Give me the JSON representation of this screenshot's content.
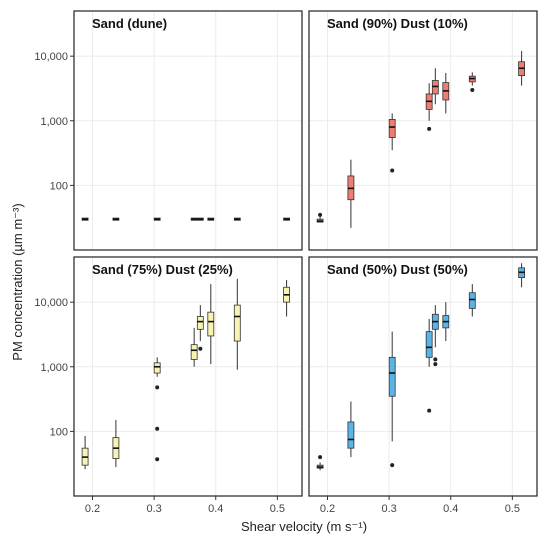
{
  "chart_data": {
    "type": "boxplot",
    "xlabel": "Shear velocity (m s⁻¹)",
    "ylabel": "PM concentration (µm m⁻³)",
    "xlim": [
      0.17,
      0.54
    ],
    "ylim": [
      10,
      50000
    ],
    "yscale": "log",
    "xticks": [
      0.2,
      0.3,
      0.4,
      0.5
    ],
    "xtick_labels": [
      "0.2",
      "0.3",
      "0.4",
      "0.5"
    ],
    "yticks": [
      100,
      1000,
      10000
    ],
    "ytick_labels": [
      "100",
      "1,000",
      "10,000"
    ],
    "grid": true,
    "legend": "none",
    "panels": [
      {
        "title": "Sand (dune)",
        "color": "#555555",
        "boxes": [
          {
            "x": 0.188,
            "min": 30,
            "q1": 30,
            "median": 30,
            "q3": 30,
            "max": 30,
            "outliers": []
          },
          {
            "x": 0.238,
            "min": 30,
            "q1": 30,
            "median": 30,
            "q3": 30,
            "max": 30,
            "outliers": []
          },
          {
            "x": 0.305,
            "min": 30,
            "q1": 30,
            "median": 30,
            "q3": 30,
            "max": 30,
            "outliers": []
          },
          {
            "x": 0.365,
            "min": 30,
            "q1": 30,
            "median": 30,
            "q3": 30,
            "max": 30,
            "outliers": []
          },
          {
            "x": 0.375,
            "min": 30,
            "q1": 30,
            "median": 30,
            "q3": 30,
            "max": 30,
            "outliers": []
          },
          {
            "x": 0.392,
            "min": 30,
            "q1": 30,
            "median": 30,
            "q3": 30,
            "max": 30,
            "outliers": []
          },
          {
            "x": 0.435,
            "min": 30,
            "q1": 30,
            "median": 30,
            "q3": 30,
            "max": 30,
            "outliers": []
          },
          {
            "x": 0.515,
            "min": 30,
            "q1": 30,
            "median": 30,
            "q3": 30,
            "max": 30,
            "outliers": []
          }
        ]
      },
      {
        "title": "Sand (90%) Dust (10%)",
        "color": "#f07d72",
        "boxes": [
          {
            "x": 0.188,
            "min": 27,
            "q1": 27,
            "median": 28,
            "q3": 30,
            "max": 33,
            "outliers": [
              35
            ]
          },
          {
            "x": 0.238,
            "min": 22,
            "q1": 60,
            "median": 90,
            "q3": 140,
            "max": 250,
            "outliers": []
          },
          {
            "x": 0.305,
            "min": 350,
            "q1": 550,
            "median": 800,
            "q3": 1050,
            "max": 1300,
            "outliers": [
              170
            ]
          },
          {
            "x": 0.365,
            "min": 1000,
            "q1": 1500,
            "median": 2000,
            "q3": 2600,
            "max": 3800,
            "outliers": [
              750
            ]
          },
          {
            "x": 0.375,
            "min": 1800,
            "q1": 2600,
            "median": 3400,
            "q3": 4200,
            "max": 6500,
            "outliers": []
          },
          {
            "x": 0.392,
            "min": 1300,
            "q1": 2100,
            "median": 2900,
            "q3": 3900,
            "max": 5500,
            "outliers": []
          },
          {
            "x": 0.435,
            "min": 3500,
            "q1": 4000,
            "median": 4500,
            "q3": 4900,
            "max": 5600,
            "outliers": [
              3000
            ]
          },
          {
            "x": 0.515,
            "min": 3500,
            "q1": 5000,
            "median": 6500,
            "q3": 8200,
            "max": 12000,
            "outliers": []
          }
        ]
      },
      {
        "title": "Sand (75%) Dust (25%)",
        "color": "#f7f3b2",
        "boxes": [
          {
            "x": 0.188,
            "min": 26,
            "q1": 30,
            "median": 40,
            "q3": 55,
            "max": 85,
            "outliers": []
          },
          {
            "x": 0.238,
            "min": 28,
            "q1": 38,
            "median": 55,
            "q3": 80,
            "max": 150,
            "outliers": []
          },
          {
            "x": 0.305,
            "min": 700,
            "q1": 800,
            "median": 1000,
            "q3": 1150,
            "max": 1400,
            "outliers": [
              480,
              110,
              37
            ]
          },
          {
            "x": 0.365,
            "min": 1000,
            "q1": 1300,
            "median": 1800,
            "q3": 2200,
            "max": 4000,
            "outliers": []
          },
          {
            "x": 0.375,
            "min": 2500,
            "q1": 3800,
            "median": 5000,
            "q3": 6000,
            "max": 9000,
            "outliers": [
              1900
            ]
          },
          {
            "x": 0.392,
            "min": 1100,
            "q1": 3000,
            "median": 5000,
            "q3": 7000,
            "max": 19000,
            "outliers": []
          },
          {
            "x": 0.435,
            "min": 900,
            "q1": 2500,
            "median": 6000,
            "q3": 9000,
            "max": 23000,
            "outliers": []
          },
          {
            "x": 0.515,
            "min": 6000,
            "q1": 10000,
            "median": 13000,
            "q3": 17000,
            "max": 22000,
            "outliers": []
          }
        ]
      },
      {
        "title": "Sand (50%) Dust (50%)",
        "color": "#5ab4e5",
        "boxes": [
          {
            "x": 0.188,
            "min": 25,
            "q1": 27,
            "median": 28,
            "q3": 30,
            "max": 33,
            "outliers": [
              40
            ]
          },
          {
            "x": 0.238,
            "min": 40,
            "q1": 55,
            "median": 75,
            "q3": 140,
            "max": 290,
            "outliers": []
          },
          {
            "x": 0.305,
            "min": 70,
            "q1": 350,
            "median": 800,
            "q3": 1400,
            "max": 3500,
            "outliers": [
              30
            ]
          },
          {
            "x": 0.365,
            "min": 1000,
            "q1": 1400,
            "median": 2000,
            "q3": 3500,
            "max": 5500,
            "outliers": [
              210
            ]
          },
          {
            "x": 0.375,
            "min": 2000,
            "q1": 3800,
            "median": 5000,
            "q3": 6500,
            "max": 9000,
            "outliers": [
              1300,
              1100
            ]
          },
          {
            "x": 0.392,
            "min": 2500,
            "q1": 4000,
            "median": 5000,
            "q3": 6200,
            "max": 10000,
            "outliers": []
          },
          {
            "x": 0.435,
            "min": 6000,
            "q1": 8000,
            "median": 11000,
            "q3": 14000,
            "max": 19000,
            "outliers": []
          },
          {
            "x": 0.515,
            "min": 17000,
            "q1": 24000,
            "median": 29000,
            "q3": 34000,
            "max": 40000,
            "outliers": []
          }
        ]
      }
    ]
  }
}
